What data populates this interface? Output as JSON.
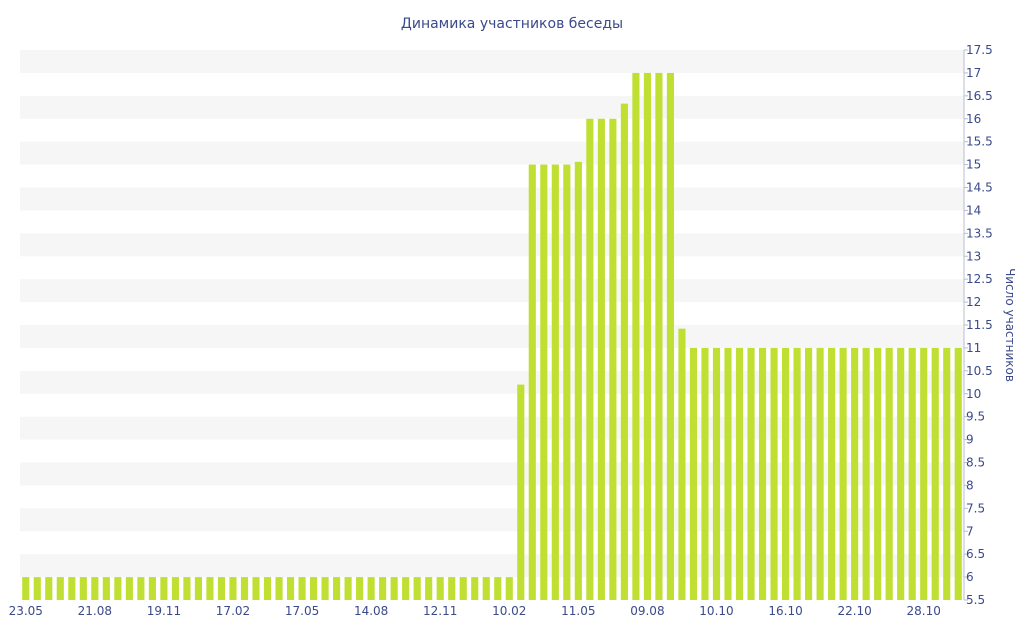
{
  "chart_data": {
    "type": "bar",
    "title": "Динамика участников беседы",
    "ylabel": "Число участников",
    "xlabel": "",
    "ylim": [
      5.5,
      17.5
    ],
    "y_ticks": [
      "5.5",
      "6",
      "6.5",
      "7",
      "7.5",
      "8",
      "8.5",
      "9",
      "9.5",
      "10",
      "10.5",
      "11",
      "11.5",
      "12",
      "12.5",
      "13",
      "13.5",
      "14",
      "14.5",
      "15",
      "15.5",
      "16",
      "16.5",
      "17",
      "17.5"
    ],
    "x_tick_labels": [
      "23.05",
      "21.08",
      "19.11",
      "17.02",
      "17.05",
      "14.08",
      "12.11",
      "10.02",
      "11.05",
      "09.08",
      "10.10",
      "16.10",
      "22.10",
      "28.10"
    ],
    "grid": "horizontal bands",
    "colors": {
      "bar": "#bfe033",
      "band": "#f6f6f6",
      "text": "#3a4a8a"
    },
    "values": [
      6,
      6,
      6,
      6,
      6,
      6,
      6,
      6,
      6,
      6,
      6,
      6,
      6,
      6,
      6,
      6,
      6,
      6,
      6,
      6,
      6,
      6,
      6,
      6,
      6,
      6,
      6,
      6,
      6,
      6,
      6,
      6,
      6,
      6,
      6,
      6,
      6,
      6,
      6,
      6,
      6,
      6,
      6,
      10.2,
      15,
      15,
      15,
      15,
      15.06,
      16,
      16,
      16,
      16.33,
      17,
      17,
      17,
      17,
      11.42,
      11,
      11,
      11,
      11,
      11,
      11,
      11,
      11,
      11,
      11,
      11,
      11,
      11,
      11,
      11,
      11,
      11,
      11,
      11,
      11,
      11,
      11,
      11,
      11
    ]
  }
}
